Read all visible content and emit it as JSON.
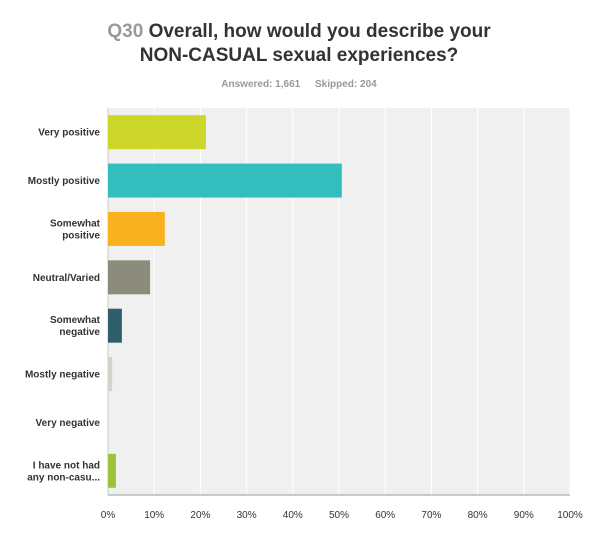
{
  "header": {
    "question_number": "Q30",
    "question_text_line1": "Overall, how would you describe your",
    "question_text_line2": "NON-CASUAL sexual experiences?",
    "answered": "Answered: 1,661",
    "skipped": "Skipped: 204"
  },
  "chart_data": {
    "type": "bar",
    "orientation": "horizontal",
    "categories": [
      [
        "Very positive"
      ],
      [
        "Mostly positive"
      ],
      [
        "Somewhat",
        "positive"
      ],
      [
        "Neutral/Varied"
      ],
      [
        "Somewhat",
        "negative"
      ],
      [
        "Mostly negative"
      ],
      [
        "Very negative"
      ],
      [
        "I have not had",
        "any non-casu..."
      ]
    ],
    "values": [
      21.2,
      50.6,
      12.3,
      9.1,
      3.0,
      0.9,
      0.0,
      1.7
    ],
    "colors": [
      "#cdd62b",
      "#33bdbd",
      "#f9b11f",
      "#8c8c7d",
      "#2f5e6b",
      "#d3d3c8",
      "#c8c8c8",
      "#9cc23c"
    ],
    "xlim": [
      0,
      100
    ],
    "xticks": [
      "0%",
      "10%",
      "20%",
      "30%",
      "40%",
      "50%",
      "60%",
      "70%",
      "80%",
      "90%",
      "100%"
    ],
    "grid": true,
    "plot_background": "#f0f0f0"
  }
}
